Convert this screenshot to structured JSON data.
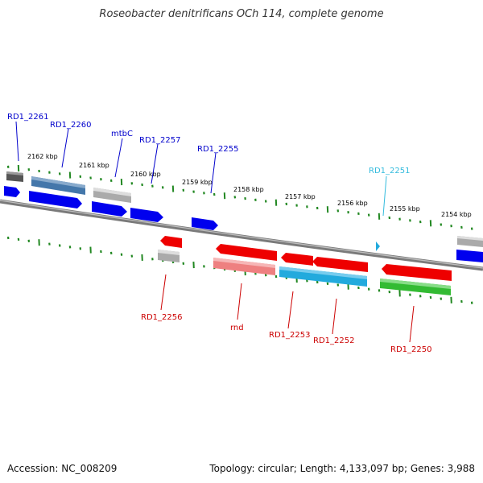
{
  "title": "Roseobacter denitrificans OCh 114, complete genome",
  "footer": {
    "accession": "Accession: NC_008209",
    "topology": "Topology: circular; Length: 4,133,097 bp; Genes: 3,988"
  },
  "ruler_labels": [
    "2162 kbp",
    "2161 kbp",
    "2160 kbp",
    "2159 kbp",
    "2158 kbp",
    "2157 kbp",
    "2156 kbp",
    "2155 kbp",
    "2154 kbp"
  ],
  "gene_labels_top": [
    {
      "name": "RD1_2261",
      "color": "#0000cc"
    },
    {
      "name": "RD1_2260",
      "color": "#0000cc"
    },
    {
      "name": "mtbC",
      "color": "#0000cc"
    },
    {
      "name": "RD1_2257",
      "color": "#0000cc"
    },
    {
      "name": "RD1_2255",
      "color": "#0000cc"
    },
    {
      "name": "RD1_2251",
      "color": "#33bbdd"
    }
  ],
  "gene_labels_bottom": [
    {
      "name": "RD1_2256",
      "color": "#cc0000"
    },
    {
      "name": "rnd",
      "color": "#cc0000"
    },
    {
      "name": "RD1_2253",
      "color": "#cc0000"
    },
    {
      "name": "RD1_2252",
      "color": "#cc0000"
    },
    {
      "name": "RD1_2250",
      "color": "#cc0000"
    }
  ],
  "colors": {
    "forward_strand": "#0000ee",
    "reverse_strand": "#ee0000",
    "backbone": "#808080",
    "ticks": "#228822",
    "highlight_cyan": "#22aadd",
    "highlight_green": "#33bb33",
    "highlight_steel": "#4477aa"
  }
}
